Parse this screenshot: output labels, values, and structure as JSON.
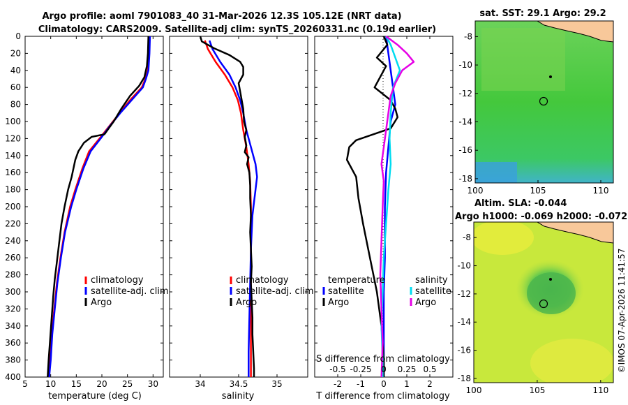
{
  "title": {
    "line1": "Argo profile: aoml 7901083_40 31-Mar-2026 12.3S 105.12E (NRT data)",
    "line2": "Climatology: CARS2009. Satellite-adj clim: synTS_20260331.nc (0.19d earlier)"
  },
  "colors": {
    "climatology": "#ff0000",
    "satellite": "#0000ff",
    "argo": "#000000",
    "sat_salinity": "#00dcf0",
    "argo_salinity": "#e600e6",
    "land": "#f8c89a"
  },
  "chart_data": [
    {
      "type": "line",
      "id": "temperature",
      "xlabel": "temperature (deg C)",
      "xlim": [
        5,
        32
      ],
      "xticks": [
        5,
        10,
        15,
        20,
        25,
        30
      ],
      "ylim": [
        400,
        0
      ],
      "yticks": [
        0,
        20,
        40,
        60,
        80,
        100,
        120,
        140,
        160,
        180,
        200,
        220,
        240,
        260,
        280,
        300,
        320,
        340,
        360,
        380,
        400
      ],
      "legend": [
        "climatology",
        "satellite-adj. clim",
        "Argo"
      ],
      "series": [
        {
          "name": "climatology",
          "points": [
            [
              29.3,
              0
            ],
            [
              29.2,
              20
            ],
            [
              29.0,
              40
            ],
            [
              28.5,
              50
            ],
            [
              27.8,
              60
            ],
            [
              25.5,
              75
            ],
            [
              23.5,
              90
            ],
            [
              21.5,
              105
            ],
            [
              19.8,
              118
            ],
            [
              17.5,
              135
            ],
            [
              16.2,
              155
            ],
            [
              14.8,
              180
            ],
            [
              13.8,
              200
            ],
            [
              12.7,
              230
            ],
            [
              11.9,
              260
            ],
            [
              11.2,
              290
            ],
            [
              10.7,
              320
            ],
            [
              10.2,
              350
            ],
            [
              9.9,
              380
            ],
            [
              9.6,
              400
            ]
          ]
        },
        {
          "name": "satellite-adj. clim",
          "points": [
            [
              29.4,
              0
            ],
            [
              29.3,
              20
            ],
            [
              29.1,
              40
            ],
            [
              28.6,
              50
            ],
            [
              28.0,
              60
            ],
            [
              25.8,
              75
            ],
            [
              23.6,
              90
            ],
            [
              21.6,
              105
            ],
            [
              20.0,
              118
            ],
            [
              17.8,
              135
            ],
            [
              16.4,
              155
            ],
            [
              15.0,
              180
            ],
            [
              14.0,
              200
            ],
            [
              12.8,
              230
            ],
            [
              12.0,
              260
            ],
            [
              11.3,
              290
            ],
            [
              10.8,
              320
            ],
            [
              10.3,
              350
            ],
            [
              10.0,
              380
            ],
            [
              9.7,
              400
            ]
          ]
        },
        {
          "name": "Argo",
          "points": [
            [
              29.1,
              0
            ],
            [
              29.0,
              20
            ],
            [
              28.8,
              35
            ],
            [
              28.3,
              48
            ],
            [
              27.3,
              58
            ],
            [
              25.5,
              70
            ],
            [
              23.8,
              85
            ],
            [
              22.3,
              100
            ],
            [
              20.5,
              115
            ],
            [
              18.0,
              118
            ],
            [
              16.5,
              125
            ],
            [
              15.4,
              135
            ],
            [
              14.8,
              145
            ],
            [
              14.1,
              165
            ],
            [
              13.4,
              180
            ],
            [
              12.7,
              200
            ],
            [
              12.1,
              220
            ],
            [
              11.6,
              245
            ],
            [
              11.2,
              265
            ],
            [
              10.8,
              285
            ],
            [
              10.5,
              305
            ],
            [
              10.2,
              330
            ],
            [
              9.9,
              355
            ],
            [
              9.6,
              380
            ],
            [
              9.4,
              400
            ]
          ]
        }
      ]
    },
    {
      "type": "line",
      "id": "salinity",
      "xlabel": "salinity",
      "xlim": [
        33.6,
        35.4
      ],
      "xticks": [
        34,
        34.5,
        35
      ],
      "ylim": [
        400,
        0
      ],
      "legend": [
        "climatology",
        "satellite-adj. clim",
        "Argo"
      ],
      "series": [
        {
          "name": "climatology",
          "points": [
            [
              34.06,
              5
            ],
            [
              34.1,
              15
            ],
            [
              34.2,
              30
            ],
            [
              34.32,
              45
            ],
            [
              34.42,
              60
            ],
            [
              34.49,
              75
            ],
            [
              34.53,
              90
            ],
            [
              34.56,
              110
            ],
            [
              34.6,
              130
            ],
            [
              34.63,
              150
            ],
            [
              34.65,
              170
            ],
            [
              34.66,
              200
            ],
            [
              34.66,
              240
            ],
            [
              34.66,
              280
            ],
            [
              34.66,
              320
            ],
            [
              34.66,
              360
            ],
            [
              34.66,
              400
            ]
          ]
        },
        {
          "name": "satellite-adj. clim",
          "points": [
            [
              34.12,
              5
            ],
            [
              34.16,
              15
            ],
            [
              34.26,
              30
            ],
            [
              34.38,
              45
            ],
            [
              34.46,
              60
            ],
            [
              34.52,
              75
            ],
            [
              34.56,
              90
            ],
            [
              34.6,
              110
            ],
            [
              34.66,
              130
            ],
            [
              34.72,
              150
            ],
            [
              34.74,
              165
            ],
            [
              34.72,
              180
            ],
            [
              34.68,
              210
            ],
            [
              34.66,
              250
            ],
            [
              34.65,
              290
            ],
            [
              34.64,
              330
            ],
            [
              34.63,
              370
            ],
            [
              34.63,
              400
            ]
          ]
        },
        {
          "name": "Argo",
          "points": [
            [
              34.0,
              0
            ],
            [
              34.02,
              6
            ],
            [
              34.18,
              14
            ],
            [
              34.38,
              22
            ],
            [
              34.52,
              30
            ],
            [
              34.56,
              36
            ],
            [
              34.56,
              45
            ],
            [
              34.5,
              55
            ],
            [
              34.53,
              70
            ],
            [
              34.56,
              85
            ],
            [
              34.57,
              100
            ],
            [
              34.6,
              110
            ],
            [
              34.58,
              118
            ],
            [
              34.6,
              128
            ],
            [
              34.58,
              136
            ],
            [
              34.63,
              142
            ],
            [
              34.61,
              150
            ],
            [
              34.64,
              160
            ],
            [
              34.65,
              175
            ],
            [
              34.65,
              190
            ],
            [
              34.66,
              210
            ],
            [
              34.65,
              230
            ],
            [
              34.66,
              250
            ],
            [
              34.67,
              270
            ],
            [
              34.66,
              290
            ],
            [
              34.67,
              310
            ],
            [
              34.68,
              330
            ],
            [
              34.68,
              350
            ],
            [
              34.69,
              370
            ],
            [
              34.7,
              390
            ],
            [
              34.7,
              400
            ]
          ]
        }
      ]
    },
    {
      "type": "line",
      "id": "difference",
      "xlabel": "T difference from climatology",
      "xlabel_top": "S difference from climatology",
      "xlim": [
        -3,
        3
      ],
      "xticks": [
        -2,
        -1,
        0,
        1,
        2
      ],
      "s_ticks": [
        {
          "label": "-0.5",
          "t": -2
        },
        {
          "label": "-0.25",
          "t": -1
        },
        {
          "label": "0",
          "t": 0
        },
        {
          "label": "0.25",
          "t": 1
        },
        {
          "label": "0.5",
          "t": 2
        }
      ],
      "ylim": [
        400,
        0
      ],
      "legend_titles": [
        "temperature",
        "salinity"
      ],
      "legend_entries": [
        "satellite",
        "Argo",
        "satellite",
        "Argo"
      ],
      "series": [
        {
          "name": "T satellite",
          "points": [
            [
              0.1,
              0
            ],
            [
              0.2,
              20
            ],
            [
              0.3,
              40
            ],
            [
              0.4,
              60
            ],
            [
              0.5,
              80
            ],
            [
              0.3,
              100
            ],
            [
              0.2,
              130
            ],
            [
              0.1,
              160
            ],
            [
              0.05,
              200
            ],
            [
              0.05,
              260
            ],
            [
              0,
              300
            ],
            [
              0,
              360
            ],
            [
              0,
              400
            ]
          ]
        },
        {
          "name": "T Argo",
          "points": [
            [
              0,
              0
            ],
            [
              0.15,
              10
            ],
            [
              -0.3,
              25
            ],
            [
              0.1,
              35
            ],
            [
              -0.4,
              60
            ],
            [
              0.3,
              75
            ],
            [
              0.5,
              85
            ],
            [
              0.6,
              95
            ],
            [
              0.3,
              108
            ],
            [
              -1.2,
              122
            ],
            [
              -1.5,
              130
            ],
            [
              -1.6,
              145
            ],
            [
              -1.2,
              165
            ],
            [
              -1.1,
              190
            ],
            [
              -0.9,
              220
            ],
            [
              -0.6,
              260
            ],
            [
              -0.3,
              300
            ],
            [
              -0.1,
              340
            ],
            [
              0,
              380
            ],
            [
              0,
              400
            ]
          ]
        },
        {
          "name": "S satellite",
          "points": [
            [
              0.1,
              0
            ],
            [
              0.3,
              10
            ],
            [
              0.5,
              25
            ],
            [
              0.7,
              40
            ],
            [
              0.4,
              60
            ],
            [
              0.3,
              90
            ],
            [
              0.25,
              120
            ],
            [
              0.3,
              150
            ],
            [
              0.2,
              180
            ],
            [
              0.1,
              220
            ],
            [
              0,
              260
            ],
            [
              -0.05,
              300
            ],
            [
              -0.1,
              340
            ],
            [
              -0.05,
              380
            ],
            [
              -0.05,
              400
            ]
          ]
        },
        {
          "name": "S Argo",
          "points": [
            [
              0.1,
              0
            ],
            [
              0.6,
              10
            ],
            [
              1.0,
              20
            ],
            [
              1.3,
              30
            ],
            [
              0.8,
              40
            ],
            [
              0.5,
              55
            ],
            [
              0.3,
              70
            ],
            [
              0.2,
              90
            ],
            [
              0.1,
              110
            ],
            [
              0.0,
              130
            ],
            [
              -0.1,
              150
            ],
            [
              0.0,
              170
            ],
            [
              -0.05,
              200
            ],
            [
              -0.1,
              240
            ],
            [
              -0.15,
              280
            ],
            [
              -0.1,
              320
            ],
            [
              -0.05,
              360
            ],
            [
              -0.1,
              400
            ]
          ]
        }
      ]
    },
    {
      "type": "heatmap",
      "id": "sst_map",
      "title": "sat. SST: 29.1 Argo: 29.2",
      "xlim": [
        100,
        111
      ],
      "ylim": [
        -18.3,
        -6.9
      ],
      "xticks": [
        100,
        105,
        110
      ],
      "yticks": [
        -8,
        -10,
        -12,
        -14,
        -16,
        -18
      ],
      "argo_position": [
        105.12,
        -12.3
      ]
    },
    {
      "type": "heatmap",
      "id": "sla_map",
      "title_line1": "Altim. SLA: -0.044",
      "title_line2": "Argo h1000: -0.069 h2000: -0.072",
      "xlim": [
        100,
        111
      ],
      "ylim": [
        -18.3,
        -6.9
      ],
      "xticks": [
        100,
        105,
        110
      ],
      "yticks": [
        -8,
        -10,
        -12,
        -14,
        -16,
        -18
      ],
      "argo_position": [
        105.12,
        -12.3
      ]
    }
  ],
  "watermark": "©IMOS 07-Apr-2026 11:41:57"
}
